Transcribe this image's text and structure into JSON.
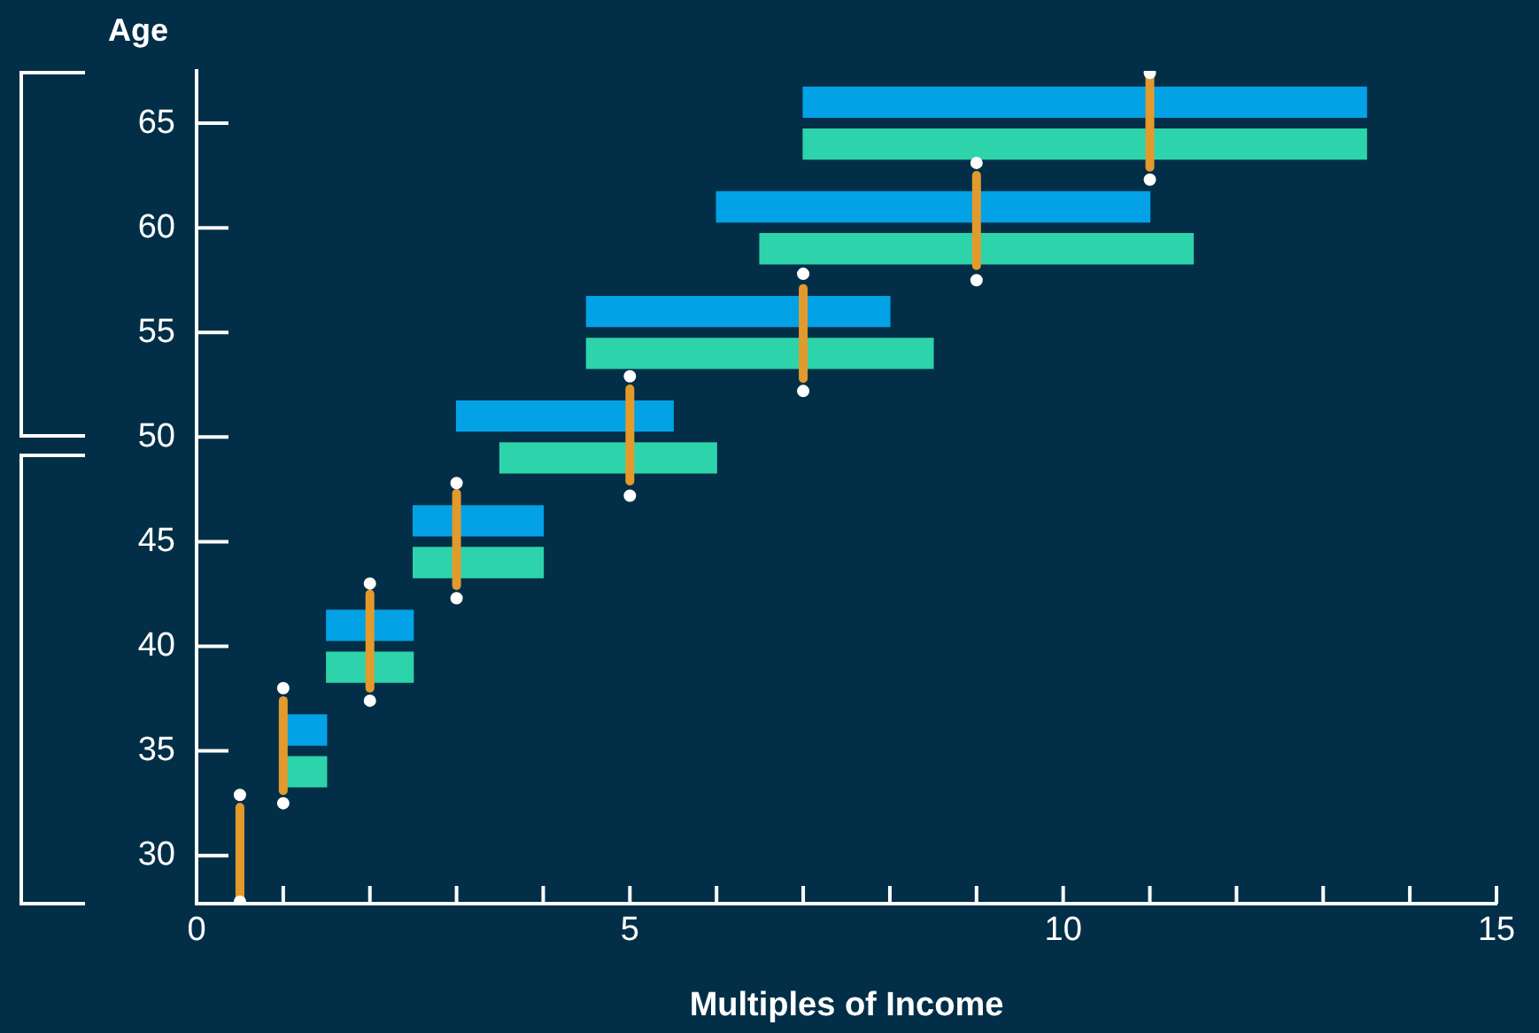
{
  "chart_data": {
    "type": "bar",
    "orientation": "horizontal",
    "xlabel": "Multiples of Income",
    "ylabel": "Age",
    "xlim": [
      0,
      15
    ],
    "xticks": [
      0,
      {
        "value": 1,
        "label": null
      },
      {
        "value": 2,
        "label": null
      },
      {
        "value": 3,
        "label": null
      },
      {
        "value": 4,
        "label": null
      },
      5,
      {
        "value": 6,
        "label": null
      },
      {
        "value": 7,
        "label": null
      },
      {
        "value": 8,
        "label": null
      },
      {
        "value": 9,
        "label": null
      },
      10,
      {
        "value": 11,
        "label": null
      },
      {
        "value": 12,
        "label": null
      },
      {
        "value": 13,
        "label": null
      },
      {
        "value": 14,
        "label": null
      },
      15
    ],
    "ylim": [
      27.7,
      67.5
    ],
    "yticks": [
      30,
      35,
      40,
      45,
      50,
      55,
      60,
      65
    ],
    "series": [
      {
        "color": "#03a1e6",
        "x": [
          36,
          41,
          46,
          51,
          56,
          61,
          66
        ],
        "base": [
          1,
          1.5,
          2.5,
          3,
          4.5,
          6,
          7
        ],
        "values": [
          0.5,
          1,
          1.5,
          2.5,
          3.5,
          5,
          6.5
        ]
      },
      {
        "color": "#2dd3aa",
        "x": [
          34,
          39,
          44,
          49,
          54,
          59,
          64
        ],
        "base": [
          1,
          1.5,
          2.5,
          3.5,
          4.5,
          6.5,
          7
        ],
        "values": [
          0.5,
          1,
          1.5,
          2.5,
          4,
          5,
          6.5
        ]
      },
      {
        "type": "line",
        "color": "#e39a2d",
        "x": [
          28,
          32.3
        ],
        "values": [
          0.5,
          0.5
        ]
      },
      {
        "type": "line",
        "color": "#e39a2d",
        "x": [
          33.1,
          37.4
        ],
        "values": [
          1,
          1
        ]
      },
      {
        "type": "line",
        "color": "#e39a2d",
        "x": [
          38,
          42.5
        ],
        "values": [
          2,
          2
        ]
      },
      {
        "type": "line",
        "color": "#e39a2d",
        "x": [
          42.9,
          47.3
        ],
        "values": [
          3,
          3
        ]
      },
      {
        "type": "line",
        "color": "#e39a2d",
        "x": [
          47.9,
          52.3
        ],
        "values": [
          5,
          5
        ]
      },
      {
        "type": "line",
        "color": "#e39a2d",
        "x": [
          52.8,
          57.1
        ],
        "values": [
          7,
          7
        ]
      },
      {
        "type": "line",
        "color": "#e39a2d",
        "x": [
          58.2,
          62.5
        ],
        "values": [
          9,
          9
        ]
      },
      {
        "type": "line",
        "color": "#e39a2d",
        "x": [
          62.9,
          67.2
        ],
        "values": [
          11,
          11
        ]
      },
      {
        "type": "scatter",
        "color": "#ffffff",
        "marker": "circle",
        "x": [
          27.8,
          32.9,
          32.5,
          38,
          37.4,
          43,
          42.3,
          47.8,
          47.2,
          52.9,
          52.2,
          57.8,
          57.5,
          63.1,
          62.3,
          67.4
        ],
        "values": [
          0.5,
          0.5,
          1,
          1,
          2,
          2,
          3,
          3,
          5,
          5,
          7,
          7,
          9,
          9,
          11,
          11
        ]
      }
    ]
  }
}
